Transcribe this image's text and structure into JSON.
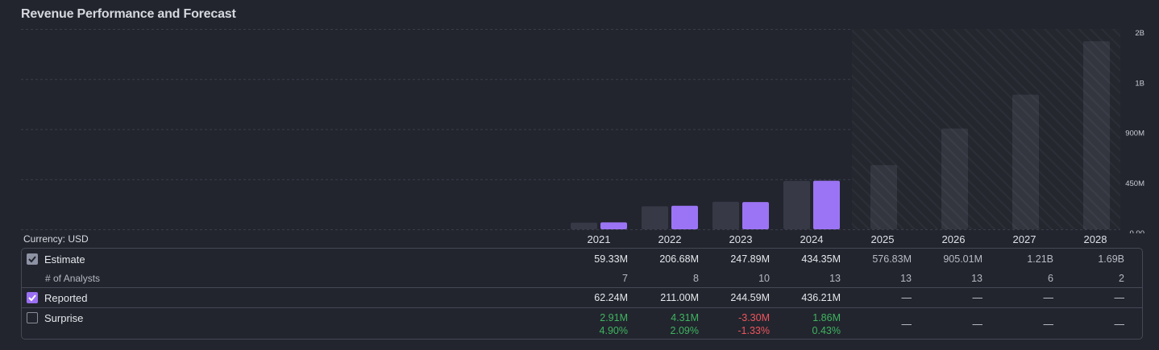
{
  "title": "Revenue Performance and Forecast",
  "currency_label": "Currency: USD",
  "colors": {
    "estimate": "#373a46",
    "reported": "#9b74f5",
    "forecast": "#343740",
    "positive": "#3fb560",
    "negative": "#f0555d"
  },
  "table": {
    "estimate_label": "Estimate",
    "analysts_label": "# of Analysts",
    "reported_label": "Reported",
    "surprise_label": "Surprise",
    "rows": [
      {
        "year": "2021",
        "estimate": "59.33M",
        "analysts": "7",
        "reported": "62.24M",
        "surprise_abs": "2.91M",
        "surprise_pct": "4.90%",
        "sign": "pos"
      },
      {
        "year": "2022",
        "estimate": "206.68M",
        "analysts": "8",
        "reported": "211.00M",
        "surprise_abs": "4.31M",
        "surprise_pct": "2.09%",
        "sign": "pos"
      },
      {
        "year": "2023",
        "estimate": "247.89M",
        "analysts": "10",
        "reported": "244.59M",
        "surprise_abs": "-3.30M",
        "surprise_pct": "-1.33%",
        "sign": "neg"
      },
      {
        "year": "2024",
        "estimate": "434.35M",
        "analysts": "13",
        "reported": "436.21M",
        "surprise_abs": "1.86M",
        "surprise_pct": "0.43%",
        "sign": "pos"
      },
      {
        "year": "2025",
        "estimate": "576.83M",
        "analysts": "13",
        "reported": "—",
        "surprise_abs": "—",
        "surprise_pct": "",
        "sign": "none"
      },
      {
        "year": "2026",
        "estimate": "905.01M",
        "analysts": "13",
        "reported": "—",
        "surprise_abs": "—",
        "surprise_pct": "",
        "sign": "none"
      },
      {
        "year": "2027",
        "estimate": "1.21B",
        "analysts": "6",
        "reported": "—",
        "surprise_abs": "—",
        "surprise_pct": "",
        "sign": "none"
      },
      {
        "year": "2028",
        "estimate": "1.69B",
        "analysts": "2",
        "reported": "—",
        "surprise_abs": "—",
        "surprise_pct": "",
        "sign": "none"
      }
    ]
  },
  "chart_data": {
    "type": "bar",
    "title": "Revenue Performance and Forecast",
    "categories": [
      "2021",
      "2022",
      "2023",
      "2024",
      "2025",
      "2026",
      "2027",
      "2028"
    ],
    "series": [
      {
        "name": "Estimate",
        "values": [
          59.33,
          206.68,
          247.89,
          434.35,
          576.83,
          905.01,
          1210,
          1690
        ]
      },
      {
        "name": "Reported",
        "values": [
          62.24,
          211.0,
          244.59,
          436.21,
          null,
          null,
          null,
          null
        ]
      }
    ],
    "units": "USD millions",
    "forecast_from": "2025",
    "y_ticks": [
      {
        "value": 0,
        "label": "0.00"
      },
      {
        "value": 450,
        "label": "450M"
      },
      {
        "value": 900,
        "label": "900M"
      },
      {
        "value": 1350,
        "label": "1B"
      },
      {
        "value": 1800,
        "label": "2B"
      }
    ],
    "ylim": [
      0,
      1800
    ],
    "grid": true,
    "xlabel": "",
    "ylabel": ""
  }
}
